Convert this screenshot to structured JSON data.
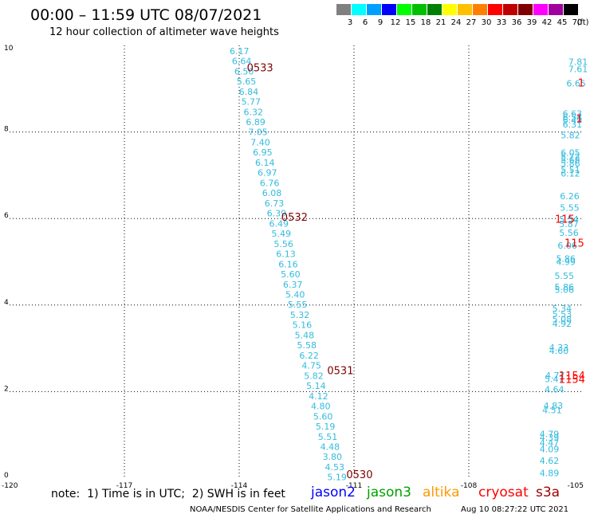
{
  "header": {
    "title": "00:00 – 11:59 UTC 08/07/2021",
    "subtitle": "12 hour collection of altimeter wave heights"
  },
  "legend": {
    "unit": "(ft)",
    "bins": [
      {
        "label": "3",
        "color": "#808080"
      },
      {
        "label": "6",
        "color": "#00ffff"
      },
      {
        "label": "9",
        "color": "#00a0ff"
      },
      {
        "label": "12",
        "color": "#0000ff"
      },
      {
        "label": "15",
        "color": "#00ff00"
      },
      {
        "label": "18",
        "color": "#00c000"
      },
      {
        "label": "21",
        "color": "#008000"
      },
      {
        "label": "24",
        "color": "#ffff00"
      },
      {
        "label": "27",
        "color": "#ffc000"
      },
      {
        "label": "30",
        "color": "#ff8000"
      },
      {
        "label": "33",
        "color": "#ff0000"
      },
      {
        "label": "36",
        "color": "#c00000"
      },
      {
        "label": "39",
        "color": "#800000"
      },
      {
        "label": "42",
        "color": "#ff00ff"
      },
      {
        "label": "45",
        "color": "#a000a0"
      },
      {
        "label": "70",
        "color": "#000000"
      }
    ]
  },
  "footer": {
    "note": "note:  1) Time is in UTC;  2) SWH is in feet",
    "satellites": [
      {
        "name": "jason2",
        "color": "#0000ff"
      },
      {
        "name": "jason3",
        "color": "#00a000"
      },
      {
        "name": "altika",
        "color": "#ff9900"
      },
      {
        "name": "cryosat",
        "color": "#ff0000"
      },
      {
        "name": "s3a",
        "color": "#a00000"
      }
    ],
    "credit": "NOAA/NESDIS Center for Satellite Applications and Research",
    "timestamp": "Aug 10 08:27:22 UTC 2021"
  },
  "chart_data": {
    "type": "scatter",
    "xlim": [
      -120,
      -105
    ],
    "ylim": [
      0,
      10
    ],
    "x_ticks": [
      "-120",
      "-117",
      "-114",
      "-111",
      "-108",
      "-105"
    ],
    "y_ticks": [
      "0",
      "2",
      "4",
      "6",
      "8",
      "10"
    ],
    "grid": true,
    "value_color": "#33bbdd",
    "track_a": {
      "values": [
        "6.17",
        "6.64",
        "6.50",
        "5.65",
        "6.84",
        "5.77",
        "6.32",
        "6.89",
        "7.05",
        "7.40",
        "6.95",
        "6.14",
        "6.97",
        "6.76",
        "6.08",
        "6.73",
        "6.39",
        "6.49",
        "5.49",
        "5.56",
        "6.13",
        "6.16",
        "5.60",
        "6.37",
        "5.40",
        "5.55",
        "5.32",
        "5.16",
        "5.48",
        "5.58",
        "6.22",
        "4.75",
        "5.82",
        "5.14",
        "4.12",
        "4.80",
        "5.60",
        "5.19",
        "5.51",
        "4.48",
        "3.80",
        "4.53",
        "5.19"
      ],
      "lon_start": -114.25,
      "lat_start": 9.8,
      "lon_end": -111.7,
      "lat_end": -0.05
    },
    "track_b": [
      {
        "v": "7.81",
        "lon": -105.4,
        "lat": 9.55
      },
      {
        "v": "7.61",
        "lon": -105.4,
        "lat": 9.38
      },
      {
        "v": "6.65",
        "lon": -105.45,
        "lat": 9.05
      },
      {
        "v": "6.63",
        "lon": -105.55,
        "lat": 8.35
      },
      {
        "v": "6.54",
        "lon": -105.55,
        "lat": 8.27
      },
      {
        "v": "6.49",
        "lon": -105.55,
        "lat": 8.2
      },
      {
        "v": "6.31",
        "lon": -105.55,
        "lat": 8.1
      },
      {
        "v": "5.82",
        "lon": -105.6,
        "lat": 7.85
      },
      {
        "v": "6.05",
        "lon": -105.6,
        "lat": 7.45
      },
      {
        "v": "5.72",
        "lon": -105.6,
        "lat": 7.36
      },
      {
        "v": "5.68",
        "lon": -105.6,
        "lat": 7.28
      },
      {
        "v": "5.86",
        "lon": -105.6,
        "lat": 7.2
      },
      {
        "v": "5.51",
        "lon": -105.6,
        "lat": 7.05
      },
      {
        "v": "6.12",
        "lon": -105.6,
        "lat": 6.97
      },
      {
        "v": "6.26",
        "lon": -105.62,
        "lat": 6.45
      },
      {
        "v": "5.55",
        "lon": -105.62,
        "lat": 6.18
      },
      {
        "v": "5.54",
        "lon": -105.64,
        "lat": 5.91
      },
      {
        "v": "5.87",
        "lon": -105.64,
        "lat": 5.8
      },
      {
        "v": "5.56",
        "lon": -105.64,
        "lat": 5.6
      },
      {
        "v": "6.06",
        "lon": -105.68,
        "lat": 5.3
      },
      {
        "v": "5.86",
        "lon": -105.72,
        "lat": 5.0
      },
      {
        "v": "4.99",
        "lon": -105.72,
        "lat": 4.93
      },
      {
        "v": "5.55",
        "lon": -105.76,
        "lat": 4.6
      },
      {
        "v": "5.86",
        "lon": -105.76,
        "lat": 4.35
      },
      {
        "v": "5.06",
        "lon": -105.76,
        "lat": 4.28
      },
      {
        "v": "5.34",
        "lon": -105.82,
        "lat": 3.85
      },
      {
        "v": "5.53",
        "lon": -105.82,
        "lat": 3.72
      },
      {
        "v": "5.08",
        "lon": -105.82,
        "lat": 3.6
      },
      {
        "v": "4.92",
        "lon": -105.82,
        "lat": 3.5
      },
      {
        "v": "4.33",
        "lon": -105.9,
        "lat": 2.95
      },
      {
        "v": "4.60",
        "lon": -105.9,
        "lat": 2.87
      },
      {
        "v": "4.77",
        "lon": -106.0,
        "lat": 2.3
      },
      {
        "v": "5.47",
        "lon": -106.02,
        "lat": 2.22
      },
      {
        "v": "4.64",
        "lon": -106.02,
        "lat": 1.98
      },
      {
        "v": "4.83",
        "lon": -106.05,
        "lat": 1.6
      },
      {
        "v": "4.51",
        "lon": -106.08,
        "lat": 1.5
      },
      {
        "v": "4.79",
        "lon": -106.15,
        "lat": 0.95
      },
      {
        "v": "4.39",
        "lon": -106.15,
        "lat": 0.87
      },
      {
        "v": "4.47",
        "lon": -106.15,
        "lat": 0.75
      },
      {
        "v": "4.09",
        "lon": -106.15,
        "lat": 0.6
      },
      {
        "v": "4.62",
        "lon": -106.15,
        "lat": 0.33
      },
      {
        "v": "4.89",
        "lon": -106.15,
        "lat": 0.05
      }
    ],
    "time_labels": [
      {
        "text": "0533",
        "lon": -113.8,
        "lat": 9.4,
        "color": "#800000"
      },
      {
        "text": "0532",
        "lon": -112.9,
        "lat": 5.95,
        "color": "#800000"
      },
      {
        "text": "0531",
        "lon": -111.7,
        "lat": 2.4,
        "color": "#800000"
      },
      {
        "text": "0530",
        "lon": -111.2,
        "lat": 0.0,
        "color": "#800000"
      },
      {
        "text": "1",
        "lon": -105.15,
        "lat": 9.05,
        "color": "#ff0000"
      },
      {
        "text": "1",
        "lon": -105.2,
        "lat": 8.22,
        "color": "#ff0000"
      },
      {
        "text": "115",
        "lon": -105.75,
        "lat": 5.9,
        "color": "#ff0000"
      },
      {
        "text": "115",
        "lon": -105.5,
        "lat": 5.35,
        "color": "#ff0000"
      },
      {
        "text": "1154",
        "lon": -105.65,
        "lat": 2.28,
        "color": "#ff0000"
      },
      {
        "text": "1154",
        "lon": -105.65,
        "lat": 2.2,
        "color": "#ff0000"
      }
    ]
  }
}
